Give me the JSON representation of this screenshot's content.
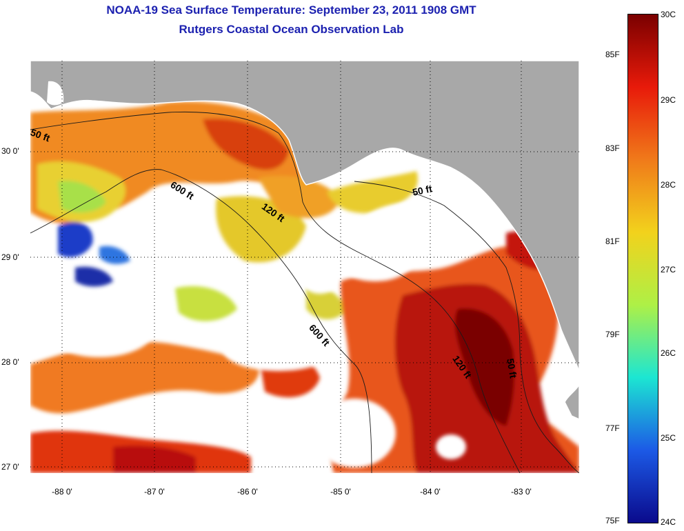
{
  "header": {
    "title": "NOAA-19 Sea Surface Temperature:  September 23, 2011 1908 GMT",
    "subtitle": "Rutgers Coastal Ocean Observation Lab"
  },
  "map": {
    "lat_ticks": [
      "30 0'",
      "29 0'",
      "28 0'",
      "27 0'"
    ],
    "lon_ticks": [
      "-88 0'",
      "-87 0'",
      "-86 0'",
      "-85 0'",
      "-84 0'",
      "-83 0'"
    ],
    "depth_labels": [
      "50 ft",
      "600 ft",
      "120 ft",
      "50 ft",
      "600 ft",
      "120 ft",
      "50 ft"
    ],
    "colors": {
      "land": "#a8a8a8",
      "no_data": "#ffffff"
    }
  },
  "colorbar": {
    "f_labels": [
      "85F",
      "83F",
      "81F",
      "79F",
      "77F",
      "75F"
    ],
    "c_labels": [
      "30C",
      "29C",
      "28C",
      "27C",
      "26C",
      "25C",
      "24C"
    ],
    "colors": [
      "#7a0000",
      "#e81a0a",
      "#f07a1a",
      "#f2d21c",
      "#aef046",
      "#1ce6d2",
      "#1c5ae6",
      "#0a0a8c"
    ]
  }
}
